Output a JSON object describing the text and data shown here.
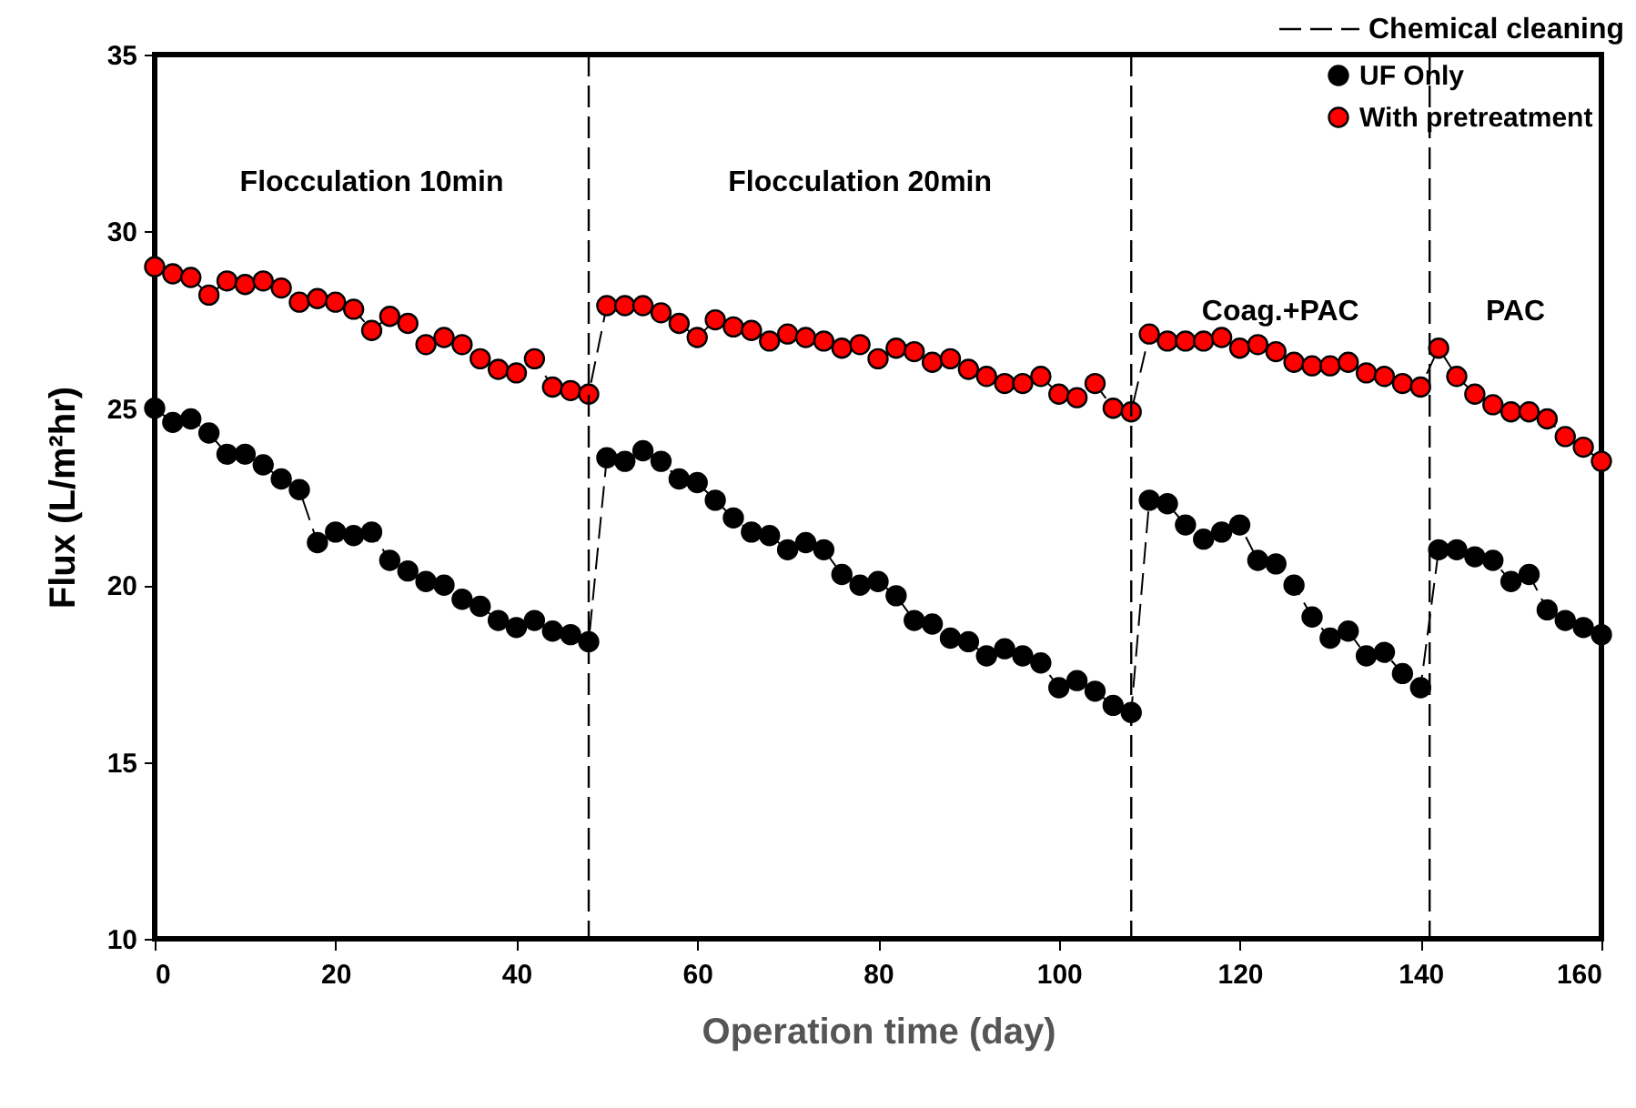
{
  "chart_data": {
    "type": "line",
    "xlabel": "Operation time (day)",
    "ylabel": "Flux (L/m²hr)",
    "xlim": [
      0,
      160
    ],
    "xticks": [
      0,
      20,
      40,
      60,
      80,
      100,
      120,
      140,
      160
    ],
    "ylim": [
      10,
      35
    ],
    "yticks": [
      10,
      15,
      20,
      25,
      30,
      35
    ],
    "grid": false,
    "legend": "top right",
    "marker": "circle",
    "line_style": "dashed",
    "series": [
      {
        "name": "UF Only",
        "color": "#000000",
        "x": [
          0,
          2,
          4,
          6,
          8,
          10,
          12,
          14,
          16,
          18,
          20,
          22,
          24,
          26,
          28,
          30,
          32,
          34,
          36,
          38,
          40,
          42,
          44,
          46,
          48,
          50,
          52,
          54,
          56,
          58,
          60,
          62,
          64,
          66,
          68,
          70,
          72,
          74,
          76,
          78,
          80,
          82,
          84,
          86,
          88,
          90,
          92,
          94,
          96,
          98,
          100,
          102,
          104,
          106,
          108,
          110,
          112,
          114,
          116,
          118,
          120,
          122,
          124,
          126,
          128,
          130,
          132,
          134,
          136,
          138,
          140,
          142,
          144,
          146,
          148,
          150,
          152,
          154,
          156,
          158,
          160
        ],
        "values": [
          25.0,
          24.6,
          24.7,
          24.3,
          23.7,
          23.7,
          23.4,
          23.0,
          22.7,
          21.2,
          21.5,
          21.4,
          21.5,
          20.7,
          20.4,
          20.1,
          20.0,
          19.6,
          19.4,
          19.0,
          18.8,
          19.0,
          18.7,
          18.6,
          18.4,
          23.6,
          23.5,
          23.8,
          23.5,
          23.0,
          22.9,
          22.4,
          21.9,
          21.5,
          21.4,
          21.0,
          21.2,
          21.0,
          20.3,
          20.0,
          20.1,
          19.7,
          19.0,
          18.9,
          18.5,
          18.4,
          18.0,
          18.2,
          18.0,
          17.8,
          17.1,
          17.3,
          17.0,
          16.6,
          16.4,
          22.4,
          22.3,
          21.7,
          21.3,
          21.5,
          21.7,
          20.7,
          20.6,
          20.0,
          19.1,
          18.5,
          18.7,
          18.0,
          18.1,
          17.5,
          17.1,
          21.0,
          21.0,
          20.8,
          20.7,
          20.1,
          20.3,
          19.3,
          19.0,
          18.8,
          18.6
        ]
      },
      {
        "name": "With pretreatment",
        "color": "#ff0000",
        "x": [
          0,
          2,
          4,
          6,
          8,
          10,
          12,
          14,
          16,
          18,
          20,
          22,
          24,
          26,
          28,
          30,
          32,
          34,
          36,
          38,
          40,
          42,
          44,
          46,
          48,
          50,
          52,
          54,
          56,
          58,
          60,
          62,
          64,
          66,
          68,
          70,
          72,
          74,
          76,
          78,
          80,
          82,
          84,
          86,
          88,
          90,
          92,
          94,
          96,
          98,
          100,
          102,
          104,
          106,
          108,
          110,
          112,
          114,
          116,
          118,
          120,
          122,
          124,
          126,
          128,
          130,
          132,
          134,
          136,
          138,
          140,
          142,
          144,
          146,
          148,
          150,
          152,
          154,
          156,
          158,
          160
        ],
        "values": [
          29.0,
          28.8,
          28.7,
          28.2,
          28.6,
          28.5,
          28.6,
          28.4,
          28.0,
          28.1,
          28.0,
          27.8,
          27.2,
          27.6,
          27.4,
          26.8,
          27.0,
          26.8,
          26.4,
          26.1,
          26.0,
          26.4,
          25.6,
          25.5,
          25.4,
          27.9,
          27.9,
          27.9,
          27.7,
          27.4,
          27.0,
          27.5,
          27.3,
          27.2,
          26.9,
          27.1,
          27.0,
          26.9,
          26.7,
          26.8,
          26.4,
          26.7,
          26.6,
          26.3,
          26.4,
          26.1,
          25.9,
          25.7,
          25.7,
          25.9,
          25.4,
          25.3,
          25.7,
          25.0,
          24.9,
          27.1,
          26.9,
          26.9,
          26.9,
          27.0,
          26.7,
          26.8,
          26.6,
          26.3,
          26.2,
          26.2,
          26.3,
          26.0,
          25.9,
          25.7,
          25.6,
          26.7,
          25.9,
          25.4,
          25.1,
          24.9,
          24.9,
          24.7,
          24.2,
          23.9,
          23.5
        ]
      }
    ],
    "ref_lines": [
      {
        "axis": "x",
        "value": 48,
        "label": "Chemical cleaning",
        "line_style": "dashed"
      },
      {
        "axis": "x",
        "value": 108,
        "line_style": "dashed"
      },
      {
        "axis": "x",
        "value": 141,
        "line_style": "dashed"
      }
    ],
    "annotations": [
      "Flocculation 10min",
      "Flocculation 20min",
      "Coag.+PAC",
      "PAC"
    ]
  }
}
